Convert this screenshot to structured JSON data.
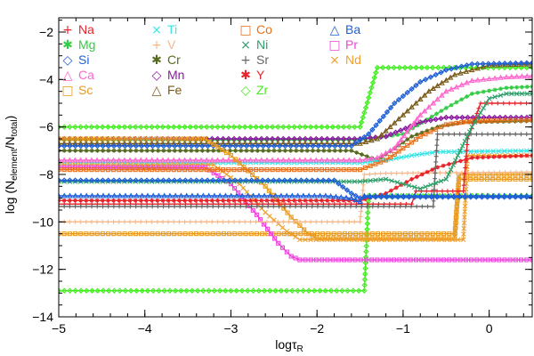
{
  "chart_data": {
    "type": "line",
    "xlabel": "logτ",
    "xlabel_sub": "R",
    "ylabel_main": "log (N",
    "ylabel_sub1": "element",
    "ylabel_mid": "/N",
    "ylabel_sub2": "total",
    "ylabel_end": ")",
    "xlim": [
      -5,
      0.5
    ],
    "ylim": [
      -14,
      -1.4
    ],
    "xticks": [
      -5,
      -4,
      -3,
      -2,
      -1,
      0
    ],
    "yticks": [
      -14,
      -12,
      -10,
      -8,
      -6,
      -4,
      -2
    ],
    "xtick_labels": [
      "−5",
      "−4",
      "−3",
      "−2",
      "−1",
      "0"
    ],
    "ytick_labels": [
      "−14",
      "−12",
      "−10",
      "−8",
      "−6",
      "−4",
      "−2"
    ],
    "legend": [
      {
        "name": "Na",
        "symbol": "+",
        "color": "#e8222a"
      },
      {
        "name": "Mg",
        "symbol": "✱",
        "color": "#33cc44"
      },
      {
        "name": "Si",
        "symbol": "◇",
        "color": "#1f5fd6"
      },
      {
        "name": "Ca",
        "symbol": "△",
        "color": "#ff66cc"
      },
      {
        "name": "Sc",
        "symbol": "□",
        "color": "#e99a1c"
      },
      {
        "name": "Ti",
        "symbol": "×",
        "color": "#33e6e6"
      },
      {
        "name": "V",
        "symbol": "+",
        "color": "#f5b98a"
      },
      {
        "name": "Cr",
        "symbol": "✱",
        "color": "#556b1f"
      },
      {
        "name": "Mn",
        "symbol": "◇",
        "color": "#8a1a9e"
      },
      {
        "name": "Fe",
        "symbol": "△",
        "color": "#7a5a18"
      },
      {
        "name": "Co",
        "symbol": "□",
        "color": "#e8701c"
      },
      {
        "name": "Ni",
        "symbol": "×",
        "color": "#2ea06a"
      },
      {
        "name": "Sr",
        "symbol": "+",
        "color": "#666666"
      },
      {
        "name": "Y",
        "symbol": "✱",
        "color": "#e8222a"
      },
      {
        "name": "Zr",
        "symbol": "◇",
        "color": "#44ee22"
      },
      {
        "name": "Ba",
        "symbol": "△",
        "color": "#1f5fd6"
      },
      {
        "name": "Pr",
        "symbol": "□",
        "color": "#ee44dd"
      },
      {
        "name": "Nd",
        "symbol": "×",
        "color": "#f0a030"
      }
    ],
    "series": [
      {
        "name": "Zr",
        "color": "#44ee22",
        "marker": "diamond",
        "points": [
          [
            -5,
            -6.0
          ],
          [
            -1.5,
            -6.0
          ],
          [
            -1.45,
            -5.4
          ],
          [
            -1.3,
            -3.5
          ],
          [
            0.5,
            -3.5
          ]
        ]
      },
      {
        "name": "Zr",
        "color": "#44ee22",
        "marker": "diamond",
        "points": [
          [
            -5,
            -12.9
          ],
          [
            -1.45,
            -12.9
          ],
          [
            -1.4,
            -8.9
          ],
          [
            0.5,
            -8.9
          ]
        ]
      },
      {
        "name": "Mg",
        "color": "#33cc44",
        "marker": "asterisk",
        "points": [
          [
            -5,
            -6.55
          ],
          [
            -1.5,
            -6.55
          ],
          [
            -1.0,
            -6.3
          ],
          [
            -0.5,
            -5.2
          ],
          [
            -0.2,
            -4.6
          ],
          [
            0.2,
            -4.35
          ],
          [
            0.5,
            -4.3
          ]
        ]
      },
      {
        "name": "Mn",
        "color": "#8a1a9e",
        "marker": "diamond",
        "points": [
          [
            -5,
            -6.5
          ],
          [
            -1.5,
            -6.5
          ],
          [
            -1.2,
            -6.4
          ],
          [
            -0.8,
            -5.8
          ],
          [
            -0.5,
            -5.6
          ],
          [
            0.5,
            -5.6
          ]
        ]
      },
      {
        "name": "Fe",
        "color": "#7a5a18",
        "marker": "triangle",
        "points": [
          [
            -5,
            -6.7
          ],
          [
            -1.5,
            -6.7
          ],
          [
            -1.3,
            -6.5
          ],
          [
            -1.0,
            -5.5
          ],
          [
            -0.7,
            -4.5
          ],
          [
            -0.4,
            -3.8
          ],
          [
            0,
            -3.4
          ],
          [
            0.5,
            -3.35
          ]
        ]
      },
      {
        "name": "Si",
        "color": "#1f5fd6",
        "marker": "diamond",
        "points": [
          [
            -5,
            -6.8
          ],
          [
            -1.6,
            -6.8
          ],
          [
            -1.4,
            -6.3
          ],
          [
            -1.1,
            -5.0
          ],
          [
            -0.8,
            -4.1
          ],
          [
            -0.5,
            -3.6
          ],
          [
            -0.2,
            -3.35
          ],
          [
            0.5,
            -3.3
          ]
        ]
      },
      {
        "name": "Cr",
        "color": "#556b1f",
        "marker": "asterisk",
        "points": [
          [
            -5,
            -7.0
          ],
          [
            -1.6,
            -7.0
          ],
          [
            -1.3,
            -7.4
          ],
          [
            -1.1,
            -6.9
          ],
          [
            -0.9,
            -6.4
          ],
          [
            -0.6,
            -6.0
          ],
          [
            -0.3,
            -5.8
          ],
          [
            0.5,
            -5.75
          ]
        ]
      },
      {
        "name": "Ti",
        "color": "#33e6e6",
        "marker": "x",
        "points": [
          [
            -5,
            -7.5
          ],
          [
            -1.5,
            -7.5
          ],
          [
            -1.2,
            -7.4
          ],
          [
            -0.9,
            -7.2
          ],
          [
            -0.6,
            -7.05
          ],
          [
            0.5,
            -7.0
          ]
        ]
      },
      {
        "name": "Ca",
        "color": "#ff66cc",
        "marker": "triangle",
        "points": [
          [
            -5,
            -7.4
          ],
          [
            -1.5,
            -7.4
          ],
          [
            -1.3,
            -7.3
          ],
          [
            -1.1,
            -6.9
          ],
          [
            -0.8,
            -5.5
          ],
          [
            -0.5,
            -4.5
          ],
          [
            -0.2,
            -4.05
          ],
          [
            0.2,
            -3.9
          ],
          [
            0.5,
            -3.85
          ]
        ]
      },
      {
        "name": "Sc",
        "color": "#e99a1c",
        "marker": "square",
        "points": [
          [
            -5,
            -6.5
          ],
          [
            -3.3,
            -6.5
          ],
          [
            -3.0,
            -7.2
          ],
          [
            -2.6,
            -8.5
          ],
          [
            -2.3,
            -9.8
          ],
          [
            -2.1,
            -10.5
          ],
          [
            -2.0,
            -10.7
          ],
          [
            -0.4,
            -10.7
          ],
          [
            -0.35,
            -8.2
          ],
          [
            0.5,
            -8.2
          ]
        ]
      },
      {
        "name": "Nd",
        "color": "#f0a030",
        "marker": "x",
        "points": [
          [
            -5,
            -7.6
          ],
          [
            -3.2,
            -7.6
          ],
          [
            -2.9,
            -8.4
          ],
          [
            -2.6,
            -9.6
          ],
          [
            -2.35,
            -10.4
          ],
          [
            -2.2,
            -10.75
          ],
          [
            -0.3,
            -10.75
          ],
          [
            -0.25,
            -7.2
          ],
          [
            0.5,
            -7.2
          ]
        ]
      },
      {
        "name": "Sc",
        "color": "#e99a1c",
        "marker": "square",
        "points": [
          [
            -5,
            -10.5
          ],
          [
            -0.4,
            -10.5
          ],
          [
            -0.35,
            -8.0
          ],
          [
            0.5,
            -8.0
          ]
        ]
      },
      {
        "name": "Pr",
        "color": "#ee44dd",
        "marker": "square",
        "points": [
          [
            -5,
            -7.7
          ],
          [
            -3.3,
            -7.7
          ],
          [
            -3.0,
            -8.4
          ],
          [
            -2.7,
            -9.7
          ],
          [
            -2.45,
            -10.9
          ],
          [
            -2.3,
            -11.45
          ],
          [
            -2.2,
            -11.6
          ],
          [
            0.5,
            -11.6
          ]
        ]
      },
      {
        "name": "V",
        "color": "#f5b98a",
        "marker": "plus",
        "points": [
          [
            -5,
            -10.0
          ],
          [
            -1.5,
            -10.0
          ],
          [
            -1.45,
            -8.0
          ],
          [
            -1.2,
            -7.95
          ],
          [
            0.5,
            -7.9
          ]
        ]
      },
      {
        "name": "Co",
        "color": "#e8701c",
        "marker": "square",
        "points": [
          [
            -5,
            -7.8
          ],
          [
            -1.5,
            -7.8
          ],
          [
            -1.2,
            -7.4
          ],
          [
            -0.8,
            -6.4
          ],
          [
            -0.5,
            -5.9
          ],
          [
            -0.2,
            -5.75
          ],
          [
            0.5,
            -5.7
          ]
        ]
      },
      {
        "name": "Y",
        "color": "#e8222a",
        "marker": "asterisk",
        "points": [
          [
            -5,
            -9.1
          ],
          [
            -1.5,
            -9.1
          ],
          [
            -1.2,
            -8.8
          ],
          [
            -0.9,
            -8.2
          ],
          [
            -0.6,
            -7.7
          ],
          [
            -0.2,
            -7.3
          ],
          [
            0.5,
            -7.2
          ]
        ]
      },
      {
        "name": "Na",
        "color": "#e8222a",
        "marker": "plus",
        "points": [
          [
            -5,
            -9.25
          ],
          [
            -0.9,
            -9.25
          ],
          [
            -0.85,
            -8.7
          ],
          [
            -0.3,
            -8.7
          ],
          [
            -0.25,
            -6.5
          ],
          [
            -0.1,
            -5.0
          ],
          [
            0.5,
            -5.0
          ]
        ]
      },
      {
        "name": "Sr",
        "color": "#666666",
        "marker": "plus",
        "points": [
          [
            -5,
            -9.35
          ],
          [
            -0.65,
            -9.35
          ],
          [
            -0.6,
            -6.3
          ],
          [
            0.5,
            -6.3
          ]
        ]
      },
      {
        "name": "Ni",
        "color": "#2ea06a",
        "marker": "x",
        "points": [
          [
            -5,
            -8.3
          ],
          [
            -1.5,
            -8.3
          ],
          [
            -1.2,
            -8.2
          ],
          [
            -0.8,
            -8.6
          ],
          [
            -0.5,
            -8.2
          ],
          [
            -0.2,
            -6.0
          ],
          [
            0.0,
            -4.8
          ],
          [
            0.2,
            -4.6
          ],
          [
            0.5,
            -4.6
          ]
        ]
      },
      {
        "name": "Ba",
        "color": "#1f5fd6",
        "marker": "triangle",
        "points": [
          [
            -5,
            -8.9
          ],
          [
            -1.9,
            -8.9
          ],
          [
            -1.6,
            -9.0
          ],
          [
            -1.5,
            -9.15
          ],
          [
            -1.45,
            -8.9
          ],
          [
            0.5,
            -8.9
          ]
        ]
      },
      {
        "name": "Si",
        "color": "#1f5fd6",
        "marker": "diamond",
        "points": [
          [
            -5,
            -8.25
          ],
          [
            -1.8,
            -8.25
          ],
          [
            -1.6,
            -8.8
          ],
          [
            -1.5,
            -9.0
          ],
          [
            -1.45,
            -8.95
          ],
          [
            0.5,
            -8.95
          ]
        ]
      }
    ]
  }
}
